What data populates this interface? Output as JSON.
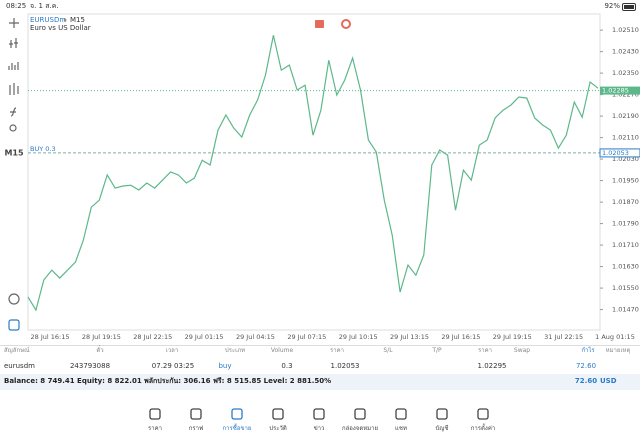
{
  "status_bar": {
    "time": "08:25",
    "date": "จ. 1 ส.ค.",
    "battery": "92%"
  },
  "chart": {
    "symbol": "EURUSDm",
    "timeframe": "M15",
    "description": "Euro vs US Dollar",
    "side_timeframe": "M15",
    "ylim": [
      1.01394,
      1.0257
    ],
    "yticks": [
      {
        "value": 1.0251,
        "label": "1.02510"
      },
      {
        "value": 1.0243,
        "label": "1.02430"
      },
      {
        "value": 1.0235,
        "label": "1.02350"
      },
      {
        "value": 1.0227,
        "label": "1.02270"
      },
      {
        "value": 1.0219,
        "label": "1.02190"
      },
      {
        "value": 1.0211,
        "label": "1.02110"
      },
      {
        "value": 1.0203,
        "label": "1.02030"
      },
      {
        "value": 1.0195,
        "label": "1.01950"
      },
      {
        "value": 1.0187,
        "label": "1.01870"
      },
      {
        "value": 1.0179,
        "label": "1.01790"
      },
      {
        "value": 1.0171,
        "label": "1.01710"
      },
      {
        "value": 1.0163,
        "label": "1.01630"
      },
      {
        "value": 1.0155,
        "label": "1.01550"
      },
      {
        "value": 1.0147,
        "label": "1.01470"
      }
    ],
    "xtick_labels": [
      "28 Jul 16:15",
      "28 Jul 19:15",
      "28 Jul 22:15",
      "29 Jul 01:15",
      "29 Jul 04:15",
      "29 Jul 07:15",
      "29 Jul 10:15",
      "29 Jul 13:15",
      "29 Jul 16:15",
      "29 Jul 19:15",
      "31 Jul 22:15",
      "1 Aug 01:15"
    ],
    "values": [
      1.01517,
      1.01468,
      1.0158,
      1.01617,
      1.01587,
      1.01617,
      1.01647,
      1.01729,
      1.01851,
      1.01877,
      1.01971,
      1.01922,
      1.0193,
      1.01933,
      1.01915,
      1.01941,
      1.01922,
      1.01952,
      1.01982,
      1.01971,
      1.01941,
      1.01959,
      1.02026,
      1.02008,
      1.02138,
      1.02194,
      1.02145,
      1.02112,
      1.02194,
      1.0225,
      1.02343,
      1.02491,
      1.02361,
      1.0238,
      1.02287,
      1.02305,
      1.02119,
      1.02212,
      1.02398,
      1.02268,
      1.02324,
      1.02406,
      1.02287,
      1.02101,
      1.02056,
      1.01877,
      1.01747,
      1.01535,
      1.01636,
      1.01598,
      1.01673,
      1.02008,
      1.02064,
      1.02045,
      1.0184,
      1.01989,
      1.01952,
      1.02082,
      1.02101,
      1.02183,
      1.02212,
      1.02231,
      1.02261,
      1.02257,
      1.02183,
      1.02157,
      1.02138,
      1.02071,
      1.02119,
      1.02242,
      1.02186,
      1.02317,
      1.02294
    ],
    "color": "#5cb88a",
    "current_price": {
      "value": 1.02285,
      "label": "1.02285"
    },
    "order_line": {
      "label": "BUY 0.3",
      "price": {
        "value": 1.02053,
        "label": "1.02053"
      }
    }
  },
  "table": {
    "headers": [
      "สัญลักษณ์",
      "ตั๋ว",
      "เวลา",
      "ประเภท",
      "Volume",
      "ราคา",
      "S/L",
      "T/P",
      "ราคา",
      "Swap",
      "กำไร",
      "หมายเหตุ"
    ],
    "row": {
      "symbol": "eurusdm",
      "ticket": "243793088",
      "time": "07.29 03:25",
      "type": "buy",
      "volume": "0.3",
      "open_price": "1.02053",
      "price": "1.02295",
      "profit": "72.60"
    }
  },
  "balance": {
    "text": "Balance: 8 749.41 Equity: 8 822.01 พลักประกัน: 306.16 ฟรี: 8 515.85 Level: 2 881.50%",
    "profit": "72.60",
    "currency": "USD"
  },
  "nav": [
    "ราคา",
    "กราฟ",
    "การซื้อขาย",
    "ประวัติ",
    "ข่าว",
    "กล่องจดหมาย",
    "แชท",
    "บัญชี",
    "การตั้งค่า"
  ]
}
